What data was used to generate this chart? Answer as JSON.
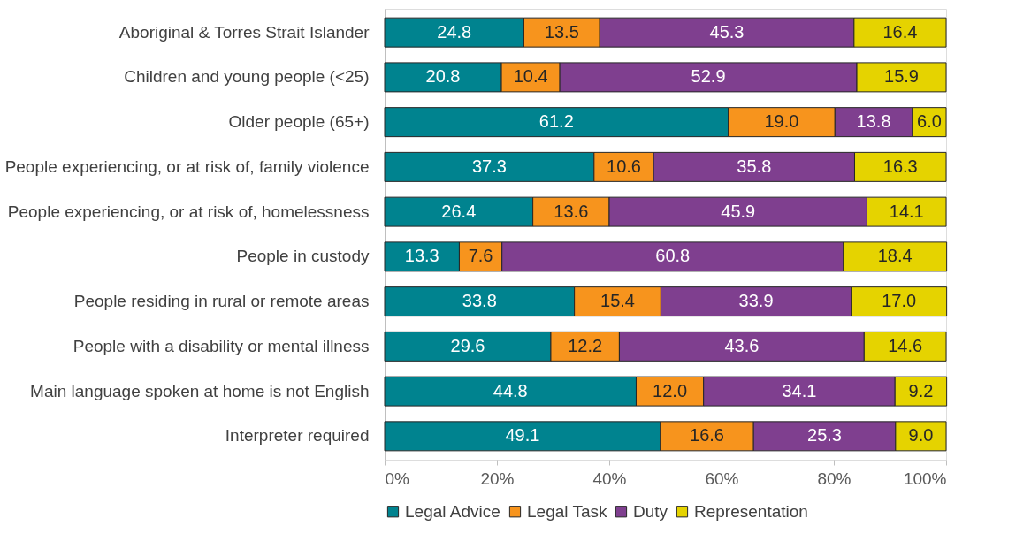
{
  "chart_data": {
    "type": "bar",
    "orientation": "horizontal",
    "stacked": true,
    "legend": "bottom",
    "grid": false,
    "categories": [
      "Aboriginal & Torres Strait Islander",
      "Children and young people (<25)",
      "Older people (65+)",
      "People experiencing, or at risk of, family violence",
      "People experiencing, or at risk of, homelessness",
      "People in custody",
      "People residing in rural or remote areas",
      "People with a disability or mental illness",
      "Main language spoken at home is not English",
      "Interpreter required"
    ],
    "series": [
      {
        "name": "Legal Advice",
        "color": "#00838f",
        "values": [
          24.8,
          20.8,
          61.2,
          37.3,
          26.4,
          13.3,
          33.8,
          29.6,
          44.8,
          49.1
        ],
        "value_labels": [
          "24.8",
          "20.8",
          "61.2",
          "37.3",
          "26.4",
          "13.3",
          "33.8",
          "29.6",
          "44.8",
          "49.1"
        ]
      },
      {
        "name": "Legal Task",
        "color": "#f7941d",
        "values": [
          13.5,
          10.4,
          19.0,
          10.6,
          13.6,
          7.6,
          15.4,
          12.2,
          12.0,
          16.6
        ],
        "value_labels": [
          "13.5",
          "10.4",
          "19.0",
          "10.6",
          "13.6",
          "7.6",
          "15.4",
          "12.2",
          "12.0",
          "16.6"
        ]
      },
      {
        "name": "Duty",
        "color": "#7f3f8f",
        "values": [
          45.3,
          52.9,
          13.8,
          35.8,
          45.9,
          60.8,
          33.9,
          43.6,
          34.1,
          25.3
        ],
        "value_labels": [
          "45.3",
          "52.9",
          "13.8",
          "35.8",
          "45.9",
          "60.8",
          "33.9",
          "43.6",
          "34.1",
          "25.3"
        ]
      },
      {
        "name": "Representation",
        "color": "#e5d300",
        "values": [
          16.4,
          15.9,
          6.0,
          16.3,
          14.1,
          18.4,
          17.0,
          14.6,
          9.2,
          9.0
        ],
        "value_labels": [
          "16.4",
          "15.9",
          "6.0",
          "16.3",
          "14.1",
          "18.4",
          "17.0",
          "14.6",
          "9.2",
          "9.0"
        ]
      }
    ],
    "xlim": [
      0,
      100
    ],
    "xticks": [
      {
        "value": 0,
        "label": "0%"
      },
      {
        "value": 20,
        "label": "20%"
      },
      {
        "value": 40,
        "label": "40%"
      },
      {
        "value": 60,
        "label": "60%"
      },
      {
        "value": 80,
        "label": "80%"
      },
      {
        "value": 100,
        "label": "100%"
      }
    ]
  }
}
